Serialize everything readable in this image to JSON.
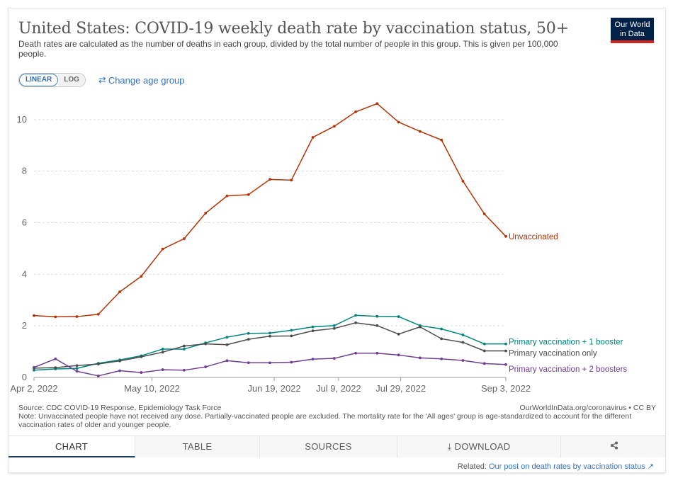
{
  "header": {
    "title": "United States: COVID-19 weekly death rate by vaccination status, 50+",
    "subtitle": "Death rates are calculated as the number of deaths in each group, divided by the total number of people in this group. This is given per 100,000 people.",
    "logo_line1": "Our World",
    "logo_line2": "in Data"
  },
  "controls": {
    "linear_label": "LINEAR",
    "log_label": "LOG",
    "change_age_label": "Change age group"
  },
  "chart_data": {
    "type": "line",
    "title": "United States: COVID-19 weekly death rate by vaccination status, 50+",
    "ylim": [
      0,
      10.6
    ],
    "y_ticks": [
      0,
      2,
      4,
      6,
      8,
      10
    ],
    "y_tick_labels": [
      "0",
      "2",
      "4",
      "6",
      "8",
      "10"
    ],
    "x_ticks": [
      {
        "week": 0,
        "label": "Apr 2, 2022"
      },
      {
        "week": 5.5,
        "label": "May 10, 2022"
      },
      {
        "week": 11.2,
        "label": "Jun 19, 2022"
      },
      {
        "week": 14.2,
        "label": "Jul 9, 2022"
      },
      {
        "week": 17.1,
        "label": "Jul 29, 2022"
      },
      {
        "week": 22.0,
        "label": "Sep 3, 2022"
      }
    ],
    "x_start": 0,
    "x_end": 22.4,
    "grid": true,
    "series": [
      {
        "name": "Unvaccinated",
        "label": "Unvaccinated",
        "color": "#b13507",
        "x": [
          0,
          1,
          2,
          3,
          4,
          5,
          6,
          7,
          8,
          9,
          10,
          11,
          12,
          13,
          14,
          15,
          16,
          17,
          18,
          19,
          20,
          21,
          22,
          22.4
        ],
        "values": [
          2.4,
          2.35,
          2.36,
          2.45,
          3.32,
          3.92,
          4.98,
          5.38,
          6.37,
          7.04,
          7.09,
          7.68,
          7.65,
          9.31,
          9.74,
          10.3,
          10.62,
          9.9,
          9.54,
          9.21,
          7.61,
          6.34,
          5.47,
          5.47
        ]
      },
      {
        "name": "Primary vaccination + 1 booster",
        "label": "Primary vaccination + 1 booster",
        "color": "#00847e",
        "x": [
          0,
          1,
          2,
          3,
          4,
          5,
          6,
          7,
          8,
          9,
          10,
          11,
          12,
          13,
          14,
          15,
          16,
          17,
          18,
          19,
          20,
          21,
          22,
          22.4
        ],
        "values": [
          0.28,
          0.33,
          0.35,
          0.55,
          0.68,
          0.84,
          1.1,
          1.1,
          1.34,
          1.56,
          1.71,
          1.72,
          1.83,
          1.96,
          2.01,
          2.41,
          2.37,
          2.36,
          2.01,
          1.88,
          1.65,
          1.3,
          1.3,
          1.3
        ]
      },
      {
        "name": "Primary vaccination only",
        "label": "Primary vaccination only",
        "color": "#4c4c4c",
        "x": [
          0,
          1,
          2,
          3,
          4,
          5,
          6,
          7,
          8,
          9,
          10,
          11,
          12,
          13,
          14,
          15,
          16,
          17,
          18,
          19,
          20,
          21,
          22,
          22.4
        ],
        "values": [
          0.36,
          0.38,
          0.46,
          0.52,
          0.64,
          0.8,
          0.98,
          1.22,
          1.3,
          1.27,
          1.48,
          1.6,
          1.61,
          1.81,
          1.9,
          2.12,
          2.01,
          1.68,
          1.96,
          1.5,
          1.36,
          1.03,
          1.03,
          1.03
        ]
      },
      {
        "name": "Primary vaccination + 2 boosters",
        "label": "Primary vaccination + 2 boosters",
        "color": "#6d3e91",
        "x": [
          0,
          1,
          2,
          3,
          4,
          5,
          6,
          7,
          8,
          9,
          10,
          11,
          12,
          13,
          14,
          15,
          16,
          17,
          18,
          19,
          20,
          21,
          22,
          22.4
        ],
        "values": [
          0.39,
          0.72,
          0.24,
          0.06,
          0.26,
          0.19,
          0.3,
          0.28,
          0.41,
          0.65,
          0.57,
          0.57,
          0.59,
          0.71,
          0.74,
          0.94,
          0.94,
          0.87,
          0.76,
          0.72,
          0.66,
          0.54,
          0.5,
          0.5
        ]
      }
    ]
  },
  "footer": {
    "source": "Source: CDC COVID-19 Response, Epidemiology Task Force",
    "credit": "OurWorldInData.org/coronavirus • CC BY",
    "note": "Note: Unvaccinated people have not received any dose. Partially-vaccinated people are excluded. The mortality rate for the 'All ages' group is age-standardized to account for the different vaccination rates of older and younger people."
  },
  "tabs": [
    {
      "label": "CHART"
    },
    {
      "label": "TABLE"
    },
    {
      "label": "SOURCES"
    },
    {
      "label": "DOWNLOAD"
    },
    {
      "label": ""
    }
  ],
  "related": {
    "prefix": "Related:",
    "link_text": "Our post on death rates by vaccination status"
  }
}
